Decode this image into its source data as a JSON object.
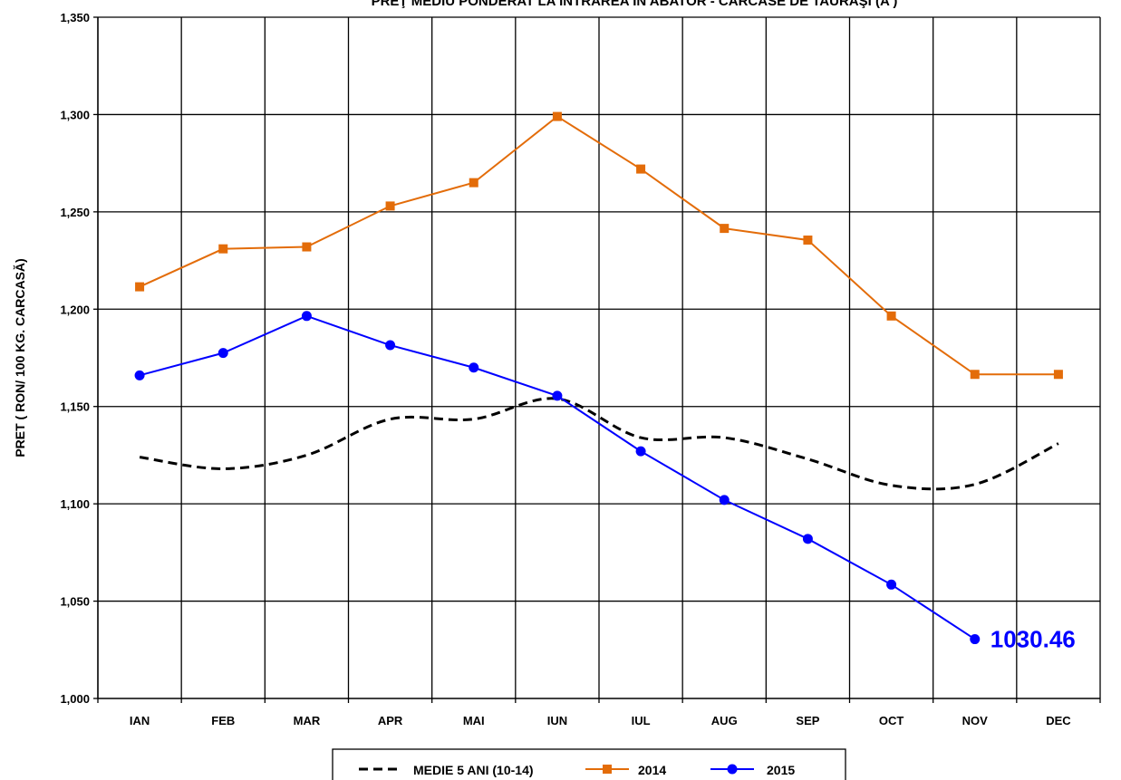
{
  "chart_data": {
    "type": "line",
    "title": "PREŢ MEDIU PONDERAT LA INTRAREA ÎN ABATOR - CARCASE DE TAURAŞI (A )",
    "ylabel": "PRET ( RON/ 100 KG. CARCASĂ)",
    "xlabel": "",
    "categories": [
      "IAN",
      "FEB",
      "MAR",
      "APR",
      "MAI",
      "IUN",
      "IUL",
      "AUG",
      "SEP",
      "OCT",
      "NOV",
      "DEC"
    ],
    "ylim": [
      1000,
      1350
    ],
    "yticks": [
      1000,
      1050,
      1100,
      1150,
      1200,
      1250,
      1300,
      1350
    ],
    "ytick_labels": [
      "1,000",
      "1,050",
      "1,100",
      "1,150",
      "1,200",
      "1,250",
      "1,300",
      "1,350"
    ],
    "grid": true,
    "legend_position": "bottom",
    "series": [
      {
        "name": "MEDIE 5 ANI (10-14)",
        "color": "#000000",
        "style": "dashed",
        "marker": "none",
        "values": [
          1124,
          1118,
          1125,
          1143.5,
          1143.5,
          1154,
          1134,
          1134,
          1123,
          1109.5,
          1110,
          1131
        ]
      },
      {
        "name": "2014",
        "color": "#E36C09",
        "style": "solid",
        "marker": "square",
        "values": [
          1211.5,
          1231,
          1232,
          1253,
          1265,
          1299,
          1272,
          1241.5,
          1235.5,
          1196.5,
          1166.5,
          1166.5
        ]
      },
      {
        "name": "2015",
        "color": "#0000FF",
        "style": "solid",
        "marker": "circle",
        "values": [
          1166,
          1177.5,
          1196.5,
          1181.5,
          1170,
          1155.5,
          1127,
          1102,
          1082,
          1058.5,
          1030.46,
          null
        ]
      }
    ],
    "annotations": [
      {
        "text": "1030.46",
        "series": "2015",
        "category": "NOV",
        "color": "#0000FF"
      }
    ]
  }
}
